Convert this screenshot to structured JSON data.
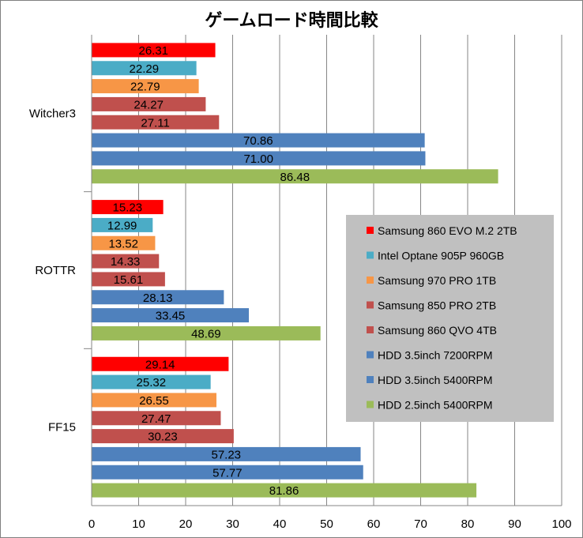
{
  "chart_data": {
    "type": "bar",
    "orientation": "horizontal",
    "title": "ゲームロード時間比較",
    "categories": [
      "Witcher3",
      "ROTTR",
      "FF15"
    ],
    "series": [
      {
        "name": "Samsung 860 EVO M.2 2TB",
        "color": "#ff0000",
        "values": [
          26.31,
          15.23,
          29.14
        ],
        "labels": [
          "26.31",
          "15.23",
          "29.14"
        ]
      },
      {
        "name": "Intel Optane 905P 960GB",
        "color": "#4bacc6",
        "values": [
          22.29,
          12.99,
          25.32
        ],
        "labels": [
          "22.29",
          "12.99",
          "25.32"
        ]
      },
      {
        "name": "Samsung 970 PRO 1TB",
        "color": "#f79646",
        "values": [
          22.79,
          13.52,
          26.55
        ],
        "labels": [
          "22.79",
          "13.52",
          "26.55"
        ]
      },
      {
        "name": "Samsung 850 PRO 2TB",
        "color": "#c0504d",
        "values": [
          24.27,
          14.33,
          27.47
        ],
        "labels": [
          "24.27",
          "14.33",
          "27.47"
        ]
      },
      {
        "name": "Samsung 860 QVO 4TB",
        "color": "#c0504d",
        "values": [
          27.11,
          15.61,
          30.23
        ],
        "labels": [
          "27.11",
          "15.61",
          "30.23"
        ]
      },
      {
        "name": "HDD 3.5inch 7200RPM",
        "color": "#4f81bd",
        "values": [
          70.86,
          28.13,
          57.23
        ],
        "labels": [
          "70.86",
          "28.13",
          "57.23"
        ]
      },
      {
        "name": "HDD 3.5inch 5400RPM",
        "color": "#4f81bd",
        "values": [
          71.0,
          33.45,
          57.77
        ],
        "labels": [
          "71.00",
          "33.45",
          "57.77"
        ]
      },
      {
        "name": "HDD 2.5inch 5400RPM",
        "color": "#9bbb59",
        "values": [
          86.48,
          48.69,
          81.86
        ],
        "labels": [
          "86.48",
          "48.69",
          "81.86"
        ]
      }
    ],
    "xlim": [
      0,
      100
    ],
    "xticks": [
      "0",
      "10",
      "20",
      "30",
      "40",
      "50",
      "60",
      "70",
      "80",
      "90",
      "100"
    ],
    "grid": true,
    "legend_placement": "right",
    "legend_background": "#c0c0c0"
  }
}
